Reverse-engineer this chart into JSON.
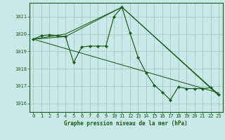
{
  "background_color": "#c8e8e8",
  "grid_color": "#9ec4c4",
  "line_color": "#1a5c1a",
  "marker_color": "#1a5c1a",
  "title": "Graphe pression niveau de la mer (hPa)",
  "ylim": [
    1015.5,
    1021.8
  ],
  "xlim": [
    -0.5,
    23.5
  ],
  "yticks": [
    1016,
    1017,
    1018,
    1019,
    1020,
    1021
  ],
  "xticks": [
    0,
    1,
    2,
    3,
    4,
    5,
    6,
    7,
    8,
    9,
    10,
    11,
    12,
    13,
    14,
    15,
    16,
    17,
    18,
    19,
    20,
    21,
    22,
    23
  ],
  "main_series": {
    "x": [
      0,
      1,
      2,
      3,
      4,
      5,
      6,
      7,
      8,
      9,
      10,
      11,
      12,
      13,
      14,
      15,
      16,
      17,
      18,
      19,
      20,
      21,
      22,
      23
    ],
    "y": [
      1019.7,
      1019.9,
      1019.95,
      1019.9,
      1019.85,
      1018.35,
      1019.25,
      1019.3,
      1019.3,
      1019.3,
      1021.0,
      1021.55,
      1020.05,
      1018.65,
      1017.75,
      1017.05,
      1016.65,
      1016.2,
      1016.95,
      1016.85,
      1016.85,
      1016.85,
      1016.9,
      1016.5
    ]
  },
  "trend_lines": [
    {
      "x": [
        0,
        23
      ],
      "y": [
        1019.7,
        1016.6
      ]
    },
    {
      "x": [
        0,
        4,
        11,
        23
      ],
      "y": [
        1019.7,
        1020.0,
        1021.55,
        1016.5
      ]
    },
    {
      "x": [
        0,
        4,
        11,
        23
      ],
      "y": [
        1019.7,
        1019.85,
        1021.55,
        1016.45
      ]
    }
  ]
}
